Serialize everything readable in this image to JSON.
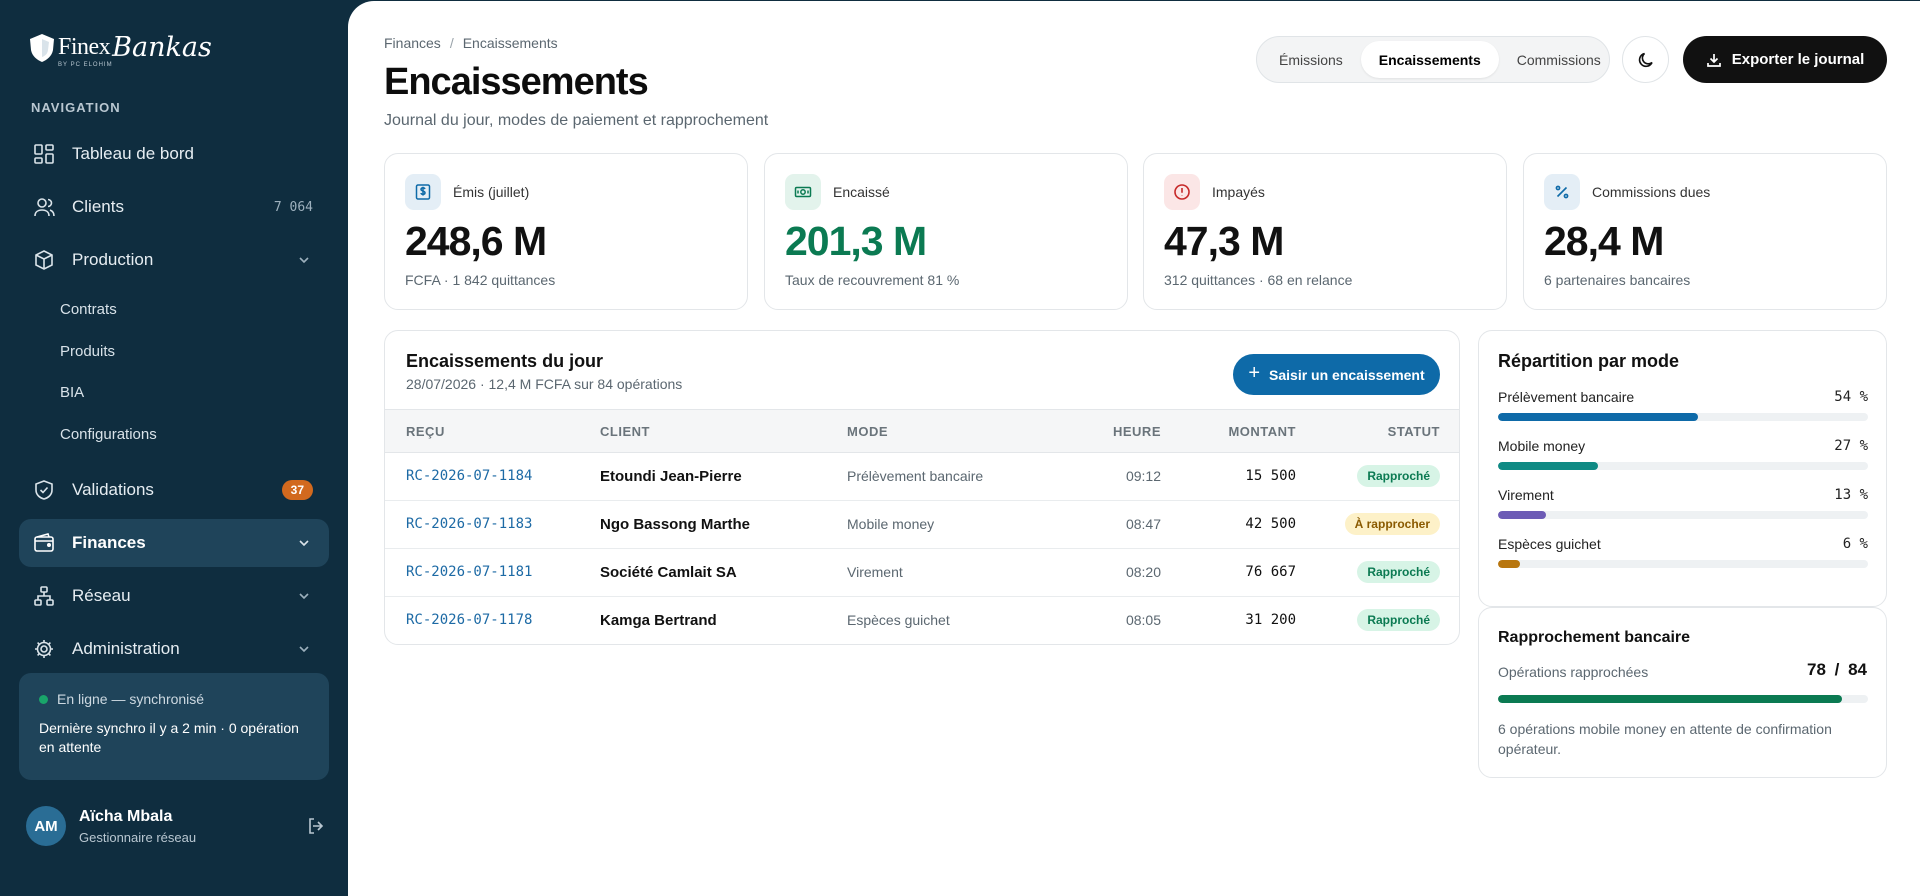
{
  "brand": {
    "name_part1": "Finex",
    "name_part2": "Bankas",
    "tagline": "BY PC ELOHIM"
  },
  "sidebar": {
    "section_title": "NAVIGATION",
    "items": [
      {
        "label": "Tableau de bord",
        "icon": "dashboard-icon"
      },
      {
        "label": "Clients",
        "icon": "users-icon",
        "count": "7 064"
      },
      {
        "label": "Production",
        "icon": "box-icon",
        "expanded": true
      },
      {
        "label": "Validations",
        "icon": "shield-check-icon",
        "badge": "37"
      },
      {
        "label": "Finances",
        "icon": "wallet-icon",
        "active": true
      },
      {
        "label": "Réseau",
        "icon": "network-icon"
      },
      {
        "label": "Administration",
        "icon": "gear-icon"
      }
    ],
    "production_sub": [
      "Contrats",
      "Produits",
      "BIA",
      "Configurations"
    ],
    "sync": {
      "status": "En ligne — synchronisé",
      "detail": "Dernière synchro il y a 2 min · 0 opération en attente"
    },
    "user": {
      "initials": "AM",
      "name": "Aïcha Mbala",
      "role": "Gestionnaire réseau"
    }
  },
  "header": {
    "breadcrumb": [
      "Finances",
      "Encaissements"
    ],
    "title": "Encaissements",
    "subtitle": "Journal du jour, modes de paiement et rapprochement",
    "tabs": [
      "Émissions",
      "Encaissements",
      "Commissions"
    ],
    "active_tab": "Encaissements",
    "export_label": "Exporter le journal"
  },
  "kpis": [
    {
      "label": "Émis (juillet)",
      "value": "248,6 M",
      "note": "FCFA · 1 842 quittances",
      "icon": "dollar-doc-icon"
    },
    {
      "label": "Encaissé",
      "value": "201,3 M",
      "note": "Taux de recouvrement 81 %",
      "icon": "banknote-icon"
    },
    {
      "label": "Impayés",
      "value": "47,3 M",
      "note": "312 quittances · 68 en relance",
      "icon": "alert-circle-icon"
    },
    {
      "label": "Commissions dues",
      "value": "28,4 M",
      "note": "6 partenaires bancaires",
      "icon": "percent-icon"
    }
  ],
  "journal": {
    "title": "Encaissements du jour",
    "subtitle": "28/07/2026 · 12,4 M FCFA sur 84 opérations",
    "add_label": "Saisir un encaissement",
    "columns": [
      "REÇU",
      "CLIENT",
      "MODE",
      "HEURE",
      "MONTANT",
      "STATUT"
    ],
    "rows": [
      {
        "recu": "RC-2026-07-1184",
        "client": "Etoundi Jean-Pierre",
        "mode": "Prélèvement bancaire",
        "heure": "09:12",
        "montant": "15 500",
        "statut": "Rapproché"
      },
      {
        "recu": "RC-2026-07-1183",
        "client": "Ngo Bassong Marthe",
        "mode": "Mobile money",
        "heure": "08:47",
        "montant": "42 500",
        "statut": "À rapprocher"
      },
      {
        "recu": "RC-2026-07-1181",
        "client": "Société Camlait SA",
        "mode": "Virement",
        "heure": "08:20",
        "montant": "76 667",
        "statut": "Rapproché"
      },
      {
        "recu": "RC-2026-07-1178",
        "client": "Kamga Bertrand",
        "mode": "Espèces guichet",
        "heure": "08:05",
        "montant": "31 200",
        "statut": "Rapproché"
      }
    ]
  },
  "repartition": {
    "title": "Répartition par mode",
    "modes": [
      {
        "label": "Prélèvement bancaire",
        "pct": "54 %",
        "share": 0.54,
        "color": "#0e6aa8"
      },
      {
        "label": "Mobile money",
        "pct": "27 %",
        "share": 0.27,
        "color": "#0f8a84"
      },
      {
        "label": "Virement",
        "pct": "13 %",
        "share": 0.13,
        "color": "#6c5bb5"
      },
      {
        "label": "Espèces guichet",
        "pct": "6 %",
        "share": 0.06,
        "color": "#b8760f"
      }
    ]
  },
  "rapprochement": {
    "title": "Rapprochement bancaire",
    "label": "Opérations rapprochées",
    "value": "78 / 84",
    "share": 0.9286,
    "note": "6 opérations mobile money en attente de confirmation opérateur."
  },
  "colors": {
    "sidebar": "#0f2d3f",
    "primary": "#0e6aa8",
    "success": "#0b7a52",
    "danger": "#c62828"
  }
}
